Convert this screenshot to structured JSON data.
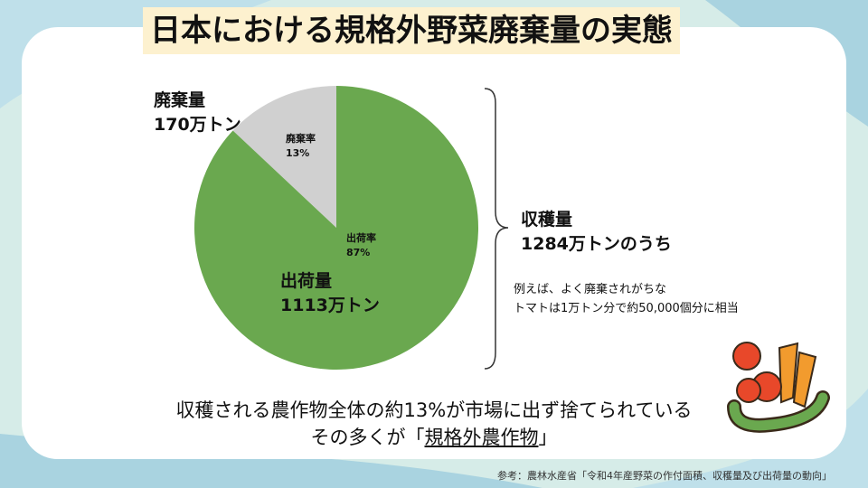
{
  "title": "日本における規格外野菜廃棄量の実態",
  "chart_data": {
    "type": "pie",
    "slices": [
      {
        "name": "廃棄率",
        "value": 13,
        "label_pct": "13%",
        "color": "#d0d0d0"
      },
      {
        "name": "出荷率",
        "value": 87,
        "label_pct": "87%",
        "color": "#6aa84f"
      }
    ]
  },
  "labels": {
    "waste_title": "廃棄量",
    "waste_amount": "170万トン",
    "ship_title": "出荷量",
    "ship_amount": "1113万トン",
    "harvest_title": "収穫量",
    "harvest_amount": "1284万トンのうち"
  },
  "note": {
    "line1": "例えば、よく廃棄されがちな",
    "line2": "トマトは1万トン分で約50,000個分に相当"
  },
  "bottom": {
    "line1": "収穫される農作物全体の約13%が市場に出ず捨てられている",
    "line2_pre": "その多くが「",
    "line2_em": "規格外農作物",
    "line2_post": "」"
  },
  "source": "参考：農林水産省「令和4年産野菜の作付面積、収穫量及び出荷量の動向」"
}
